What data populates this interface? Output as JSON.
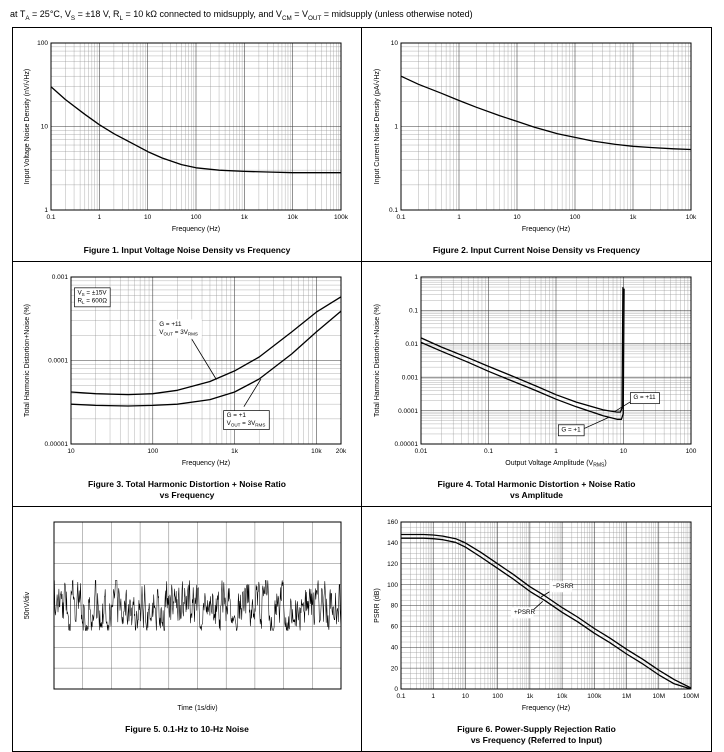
{
  "header": {
    "condition": "at T_{A} = 25°C, V_{S} = ±18 V, R_{L} = 10 kΩ connected to midsupply, and V_{CM} = V_{OUT} = midsupply (unless otherwise noted)"
  },
  "figures": [
    {
      "caption": "Figure 1. Input Voltage Noise Density vs Frequency"
    },
    {
      "caption": "Figure 2. Input Current Noise Density vs Frequency"
    },
    {
      "caption": "Figure 3. Total Harmonic Distortion + Noise Ratio\nvs Frequency"
    },
    {
      "caption": "Figure 4. Total Harmonic Distortion + Noise Ratio\nvs Amplitude"
    },
    {
      "caption": "Figure 5. 0.1-Hz to 10-Hz Noise"
    },
    {
      "caption": "Figure 6. Power-Supply Rejection Ratio\nvs Frequency (Referred to Input)"
    }
  ],
  "chart_data": [
    {
      "type": "line",
      "xscale": "log",
      "yscale": "log",
      "xlim": [
        0.1,
        100000
      ],
      "ylim": [
        1,
        100
      ],
      "xlabel": "Frequency (Hz)",
      "ylabel": "Input Voltage Noise Density (nV/√Hz)",
      "xticks": [
        {
          "v": 0.1,
          "l": "0.1"
        },
        {
          "v": 1,
          "l": "1"
        },
        {
          "v": 10,
          "l": "10"
        },
        {
          "v": 100,
          "l": "100"
        },
        {
          "v": 1000,
          "l": "1k"
        },
        {
          "v": 10000,
          "l": "10k"
        },
        {
          "v": 100000,
          "l": "100k"
        }
      ],
      "yticks": [
        {
          "v": 1,
          "l": "1"
        },
        {
          "v": 10,
          "l": "10"
        },
        {
          "v": 100,
          "l": "100"
        }
      ],
      "series": [
        {
          "name": "voltage-noise",
          "points": [
            [
              0.1,
              30
            ],
            [
              0.2,
              21
            ],
            [
              0.5,
              14
            ],
            [
              1,
              10.5
            ],
            [
              2,
              8.2
            ],
            [
              5,
              6.2
            ],
            [
              10,
              5
            ],
            [
              20,
              4.2
            ],
            [
              50,
              3.5
            ],
            [
              100,
              3.2
            ],
            [
              300,
              3.0
            ],
            [
              1000,
              2.9
            ],
            [
              3000,
              2.85
            ],
            [
              10000,
              2.8
            ],
            [
              100000,
              2.8
            ]
          ]
        }
      ]
    },
    {
      "type": "line",
      "xscale": "log",
      "yscale": "log",
      "xlim": [
        0.1,
        10000
      ],
      "ylim": [
        0.1,
        10
      ],
      "xlabel": "Frequency (Hz)",
      "ylabel": "Input Current Noise Density (pA/√Hz)",
      "xticks": [
        {
          "v": 0.1,
          "l": "0.1"
        },
        {
          "v": 1,
          "l": "1"
        },
        {
          "v": 10,
          "l": "10"
        },
        {
          "v": 100,
          "l": "100"
        },
        {
          "v": 1000,
          "l": "1k"
        },
        {
          "v": 10000,
          "l": "10k"
        }
      ],
      "yticks": [
        {
          "v": 0.1,
          "l": "0.1"
        },
        {
          "v": 1,
          "l": "1"
        },
        {
          "v": 10,
          "l": "10"
        }
      ],
      "series": [
        {
          "name": "current-noise",
          "points": [
            [
              0.1,
              4.0
            ],
            [
              0.2,
              3.2
            ],
            [
              0.5,
              2.5
            ],
            [
              1,
              2.05
            ],
            [
              2,
              1.7
            ],
            [
              5,
              1.35
            ],
            [
              10,
              1.15
            ],
            [
              20,
              0.98
            ],
            [
              50,
              0.82
            ],
            [
              100,
              0.74
            ],
            [
              200,
              0.67
            ],
            [
              500,
              0.61
            ],
            [
              1000,
              0.58
            ],
            [
              2000,
              0.56
            ],
            [
              5000,
              0.54
            ],
            [
              10000,
              0.53
            ]
          ]
        }
      ]
    },
    {
      "type": "line",
      "xscale": "log",
      "yscale": "log",
      "xlim": [
        10,
        20000
      ],
      "ylim": [
        1e-05,
        0.001
      ],
      "xlabel": "Frequency (Hz)",
      "ylabel": "Total Harmonic Distortion+Noise (%)",
      "xticks": [
        {
          "v": 10,
          "l": "10"
        },
        {
          "v": 100,
          "l": "100"
        },
        {
          "v": 1000,
          "l": "1k"
        },
        {
          "v": 10000,
          "l": "10k"
        },
        {
          "v": 20000,
          "l": "20k"
        }
      ],
      "yticks": [
        {
          "v": 1e-05,
          "l": "0.00001"
        },
        {
          "v": 0.0001,
          "l": "0.0001"
        },
        {
          "v": 0.001,
          "l": "0.001"
        }
      ],
      "series": [
        {
          "name": "thd-g11",
          "points": [
            [
              10,
              4.2e-05
            ],
            [
              20,
              4e-05
            ],
            [
              50,
              3.9e-05
            ],
            [
              100,
              4e-05
            ],
            [
              200,
              4.4e-05
            ],
            [
              500,
              5.6e-05
            ],
            [
              1000,
              7.5e-05
            ],
            [
              2000,
              0.00011
            ],
            [
              5000,
              0.00022
            ],
            [
              10000,
              0.00038
            ],
            [
              20000,
              0.00058
            ]
          ]
        },
        {
          "name": "thd-g1",
          "points": [
            [
              10,
              3e-05
            ],
            [
              20,
              2.9e-05
            ],
            [
              50,
              2.85e-05
            ],
            [
              100,
              2.9e-05
            ],
            [
              200,
              3e-05
            ],
            [
              500,
              3.4e-05
            ],
            [
              1000,
              4.2e-05
            ],
            [
              2000,
              6e-05
            ],
            [
              5000,
              0.00012
            ],
            [
              10000,
              0.00022
            ],
            [
              20000,
              0.00039
            ]
          ]
        }
      ],
      "annotations": [
        {
          "x": 12,
          "y": 0.00062,
          "lines": [
            "V_{S} = ±15V",
            "R_{L} = 600Ω"
          ],
          "boxed": true
        },
        {
          "x": 120,
          "y": 0.00026,
          "lines": [
            "G = +11",
            "V_{OUT} = 3V_{RMS}"
          ],
          "boxed": false
        },
        {
          "x": 800,
          "y": 2.1e-05,
          "lines": [
            "G = +1",
            "V_{OUT} = 3V_{RMS}"
          ],
          "boxed": true
        }
      ],
      "leaders": [
        [
          300,
          0.00018,
          600,
          5.9e-05
        ],
        [
          1300,
          2.8e-05,
          2100,
          6e-05
        ]
      ]
    },
    {
      "type": "line",
      "xscale": "log",
      "yscale": "log",
      "xlim": [
        0.01,
        100
      ],
      "ylim": [
        1e-05,
        1
      ],
      "xlabel": "Output Voltage Amplitude (V_{RMS})",
      "ylabel": "Total Harmonic Distortion+Noise (%)",
      "xticks": [
        {
          "v": 0.01,
          "l": "0.01"
        },
        {
          "v": 0.1,
          "l": "0.1"
        },
        {
          "v": 1,
          "l": "1"
        },
        {
          "v": 10,
          "l": "10"
        },
        {
          "v": 100,
          "l": "100"
        }
      ],
      "yticks": [
        {
          "v": 1e-05,
          "l": "0.00001"
        },
        {
          "v": 0.0001,
          "l": "0.0001"
        },
        {
          "v": 0.001,
          "l": "0.001"
        },
        {
          "v": 0.01,
          "l": "0.01"
        },
        {
          "v": 0.1,
          "l": "0.1"
        },
        {
          "v": 1,
          "l": "1"
        }
      ],
      "series": [
        {
          "name": "thd-g11",
          "points": [
            [
              0.01,
              0.015
            ],
            [
              0.02,
              0.008
            ],
            [
              0.05,
              0.0038
            ],
            [
              0.1,
              0.0021
            ],
            [
              0.2,
              0.0012
            ],
            [
              0.5,
              0.00055
            ],
            [
              1,
              0.0003
            ],
            [
              2,
              0.00018
            ],
            [
              5,
              0.000105
            ],
            [
              8,
              9e-05
            ],
            [
              9,
              9e-05
            ],
            [
              9.5,
              0.00012
            ],
            [
              9.8,
              0.5
            ]
          ]
        },
        {
          "name": "thd-g1",
          "points": [
            [
              0.01,
              0.011
            ],
            [
              0.02,
              0.006
            ],
            [
              0.05,
              0.0028
            ],
            [
              0.1,
              0.0015
            ],
            [
              0.2,
              0.00085
            ],
            [
              0.5,
              0.0004
            ],
            [
              1,
              0.00022
            ],
            [
              2,
              0.00013
            ],
            [
              5,
              7e-05
            ],
            [
              8,
              5.5e-05
            ],
            [
              9.3,
              5.5e-05
            ],
            [
              9.9,
              8e-05
            ],
            [
              10.2,
              0.45
            ]
          ]
        }
      ],
      "annotations": [
        {
          "x": 14,
          "y": 0.00022,
          "lines": [
            "G = +11"
          ],
          "boxed": true
        },
        {
          "x": 1.2,
          "y": 2.4e-05,
          "lines": [
            "G = +1"
          ],
          "boxed": true
        }
      ],
      "leaders": [
        [
          13,
          0.00019,
          7.5,
          9.5e-05
        ],
        [
          2.6,
          2.9e-05,
          6,
          6.2e-05
        ]
      ]
    },
    {
      "type": "scope",
      "xlabel": "Time (1s/div)",
      "ylabel": "50nV/div",
      "xdivs": 10,
      "ydivs": 8,
      "noise": {
        "seed": 7,
        "points": 640,
        "amplitude": 0.75,
        "center": 4
      }
    },
    {
      "type": "line",
      "xscale": "log",
      "yscale": "linear",
      "xlim": [
        0.1,
        100000000
      ],
      "ylim": [
        0,
        160
      ],
      "yminor": 5,
      "xlabel": "Frequency (Hz)",
      "ylabel": "PSRR (dB)",
      "xticks": [
        {
          "v": 0.1,
          "l": "0.1"
        },
        {
          "v": 1,
          "l": "1"
        },
        {
          "v": 10,
          "l": "10"
        },
        {
          "v": 100,
          "l": "100"
        },
        {
          "v": 1000,
          "l": "1k"
        },
        {
          "v": 10000,
          "l": "10k"
        },
        {
          "v": 100000,
          "l": "100k"
        },
        {
          "v": 1000000,
          "l": "1M"
        },
        {
          "v": 10000000,
          "l": "10M"
        },
        {
          "v": 100000000,
          "l": "100M"
        }
      ],
      "yticks": [
        {
          "v": 0,
          "l": "0"
        },
        {
          "v": 20,
          "l": "20"
        },
        {
          "v": 40,
          "l": "40"
        },
        {
          "v": 60,
          "l": "60"
        },
        {
          "v": 80,
          "l": "80"
        },
        {
          "v": 100,
          "l": "100"
        },
        {
          "v": 120,
          "l": "120"
        },
        {
          "v": 140,
          "l": "140"
        },
        {
          "v": 160,
          "l": "160"
        }
      ],
      "series": [
        {
          "name": "psrr-neg",
          "points": [
            [
              0.1,
              148
            ],
            [
              0.5,
              148
            ],
            [
              1,
              147.5
            ],
            [
              2,
              146.5
            ],
            [
              5,
              144
            ],
            [
              10,
              140
            ],
            [
              30,
              131
            ],
            [
              100,
              120
            ],
            [
              300,
              110
            ],
            [
              1000,
              98
            ],
            [
              3000,
              89
            ],
            [
              10000,
              78
            ],
            [
              30000,
              69
            ],
            [
              100000,
              58
            ],
            [
              300000,
              49
            ],
            [
              1000000,
              38
            ],
            [
              3000000,
              29
            ],
            [
              10000000,
              18
            ],
            [
              30000000,
              9
            ],
            [
              100000000,
              1
            ]
          ]
        },
        {
          "name": "psrr-pos",
          "points": [
            [
              0.1,
              144.5
            ],
            [
              0.5,
              144.5
            ],
            [
              1,
              144
            ],
            [
              2,
              143
            ],
            [
              5,
              140.5
            ],
            [
              10,
              136
            ],
            [
              30,
              126.5
            ],
            [
              100,
              115.5
            ],
            [
              300,
              105.5
            ],
            [
              1000,
              93.5
            ],
            [
              3000,
              84.5
            ],
            [
              10000,
              73.5
            ],
            [
              30000,
              64.5
            ],
            [
              100000,
              53.5
            ],
            [
              300000,
              44.5
            ],
            [
              1000000,
              33.5
            ],
            [
              3000000,
              24.5
            ],
            [
              10000000,
              13.5
            ],
            [
              30000000,
              5
            ],
            [
              100000000,
              0
            ]
          ]
        }
      ],
      "annotations": [
        {
          "x": 5000,
          "y": 97,
          "lines": [
            "−PSRR"
          ],
          "boxed": false
        },
        {
          "x": 320,
          "y": 72,
          "lines": [
            "+PSRR"
          ],
          "boxed": false
        }
      ],
      "leaders": [
        [
          4500,
          94,
          2200,
          88
        ],
        [
          1300,
          76,
          2500,
          84
        ]
      ]
    }
  ]
}
